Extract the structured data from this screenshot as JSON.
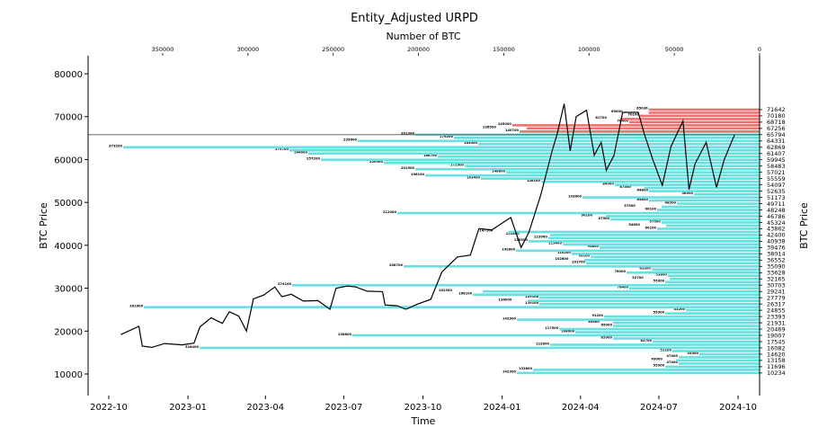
{
  "chart_data": {
    "type": "bar",
    "title": "Entity_Adjusted URPD",
    "top_xlabel": "Number of BTC",
    "xlabel": "Time",
    "ylabel": "BTC Price",
    "right_ylabel": "BTC Price",
    "ylim": [
      4970,
      84200
    ],
    "yticks": [
      10000,
      20000,
      30000,
      40000,
      50000,
      60000,
      70000,
      80000
    ],
    "top_xlim": [
      393750,
      0
    ],
    "top_xticks": [
      350000,
      300000,
      250000,
      200000,
      150000,
      100000,
      50000,
      0
    ],
    "time_xlim": [
      "2022-09-07",
      "2024-10-26"
    ],
    "time_xticks": [
      "2022-10",
      "2023-01",
      "2023-04",
      "2023-07",
      "2023-10",
      "2024-01",
      "2024-04",
      "2024-07",
      "2024-10"
    ],
    "right_yticks": [
      71642,
      70180,
      68718,
      67256,
      65794,
      64331,
      62869,
      61407,
      59945,
      58483,
      57021,
      55559,
      54097,
      52635,
      51173,
      49711,
      48248,
      46786,
      45324,
      43862,
      42400,
      40938,
      39476,
      38014,
      36552,
      35090,
      33628,
      32165,
      30703,
      29241,
      27779,
      26317,
      24855,
      23393,
      21931,
      20469,
      19007,
      17545,
      16082,
      14620,
      13158,
      11696,
      10234
    ],
    "current_price": 65794,
    "colors": {
      "above_price": "#f07070",
      "below_price": "#66e0e0",
      "price_line": "#000000"
    },
    "urpd_bins": {
      "start_price": 10234,
      "step": 731,
      "btc": [
        142300,
        132800,
        55300,
        47400,
        49000,
        47400,
        35300,
        51100,
        328400,
        122800,
        62700,
        85900,
        238800,
        108000,
        117500,
        85900,
        85900,
        142300,
        91200,
        55300,
        43200,
        361000,
        129100,
        136000,
        129100,
        168100,
        162300,
        76400,
        274100,
        55300,
        52700,
        53800,
        78000,
        63300,
        208700,
        101700,
        102800,
        99100,
        110200,
        142800,
        93800,
        115400,
        135500,
        123900,
        122800,
        147100,
        60100,
        54800,
        57500,
        87500,
        90100,
        212400,
        60100,
        57500,
        48500,
        64800,
        103800,
        38500,
        64800,
        67500,
        84900,
        128100,
        163400,
        196100,
        148600,
        201900,
        172900,
        220300,
        257200,
        188700,
        264600,
        275700,
        373200,
        165000,
        235600,
        179200,
        201900,
        140700,
        136500,
        145000,
        76400,
        81700,
        70100,
        65000,
        65036
      ]
    },
    "price_series": [
      [
        "2022-10-15",
        19200
      ],
      [
        "2022-10-25",
        20100
      ],
      [
        "2022-11-05",
        21100
      ],
      [
        "2022-11-09",
        16500
      ],
      [
        "2022-11-20",
        16200
      ],
      [
        "2022-12-05",
        17100
      ],
      [
        "2022-12-25",
        16800
      ],
      [
        "2023-01-08",
        17200
      ],
      [
        "2023-01-15",
        21000
      ],
      [
        "2023-01-28",
        23100
      ],
      [
        "2023-02-10",
        21800
      ],
      [
        "2023-02-18",
        24500
      ],
      [
        "2023-03-01",
        23500
      ],
      [
        "2023-03-10",
        20000
      ],
      [
        "2023-03-18",
        27500
      ],
      [
        "2023-03-30",
        28400
      ],
      [
        "2023-04-12",
        30300
      ],
      [
        "2023-04-20",
        28000
      ],
      [
        "2023-05-01",
        28600
      ],
      [
        "2023-05-15",
        27000
      ],
      [
        "2023-06-01",
        27100
      ],
      [
        "2023-06-15",
        25100
      ],
      [
        "2023-06-22",
        30000
      ],
      [
        "2023-07-05",
        30500
      ],
      [
        "2023-07-15",
        30300
      ],
      [
        "2023-07-28",
        29300
      ],
      [
        "2023-08-15",
        29200
      ],
      [
        "2023-08-18",
        26100
      ],
      [
        "2023-09-01",
        25900
      ],
      [
        "2023-09-11",
        25100
      ],
      [
        "2023-09-25",
        26300
      ],
      [
        "2023-10-10",
        27400
      ],
      [
        "2023-10-23",
        33800
      ],
      [
        "2023-11-10",
        37300
      ],
      [
        "2023-11-25",
        37700
      ],
      [
        "2023-12-05",
        43900
      ],
      [
        "2023-12-20",
        43600
      ],
      [
        "2024-01-11",
        46500
      ],
      [
        "2024-01-23",
        39500
      ],
      [
        "2024-02-01",
        43000
      ],
      [
        "2024-02-15",
        51800
      ],
      [
        "2024-02-28",
        62000
      ],
      [
        "2024-03-05",
        66000
      ],
      [
        "2024-03-13",
        73000
      ],
      [
        "2024-03-20",
        62000
      ],
      [
        "2024-03-27",
        70000
      ],
      [
        "2024-04-08",
        71500
      ],
      [
        "2024-04-17",
        61000
      ],
      [
        "2024-04-25",
        64000
      ],
      [
        "2024-05-01",
        57500
      ],
      [
        "2024-05-10",
        61000
      ],
      [
        "2024-05-20",
        71000
      ],
      [
        "2024-06-07",
        71000
      ],
      [
        "2024-06-14",
        66000
      ],
      [
        "2024-06-24",
        60000
      ],
      [
        "2024-07-05",
        54000
      ],
      [
        "2024-07-15",
        63000
      ],
      [
        "2024-07-29",
        69000
      ],
      [
        "2024-08-05",
        53000
      ],
      [
        "2024-08-12",
        59000
      ],
      [
        "2024-08-25",
        64000
      ],
      [
        "2024-09-06",
        53500
      ],
      [
        "2024-09-15",
        60000
      ],
      [
        "2024-09-27",
        65800
      ]
    ]
  }
}
